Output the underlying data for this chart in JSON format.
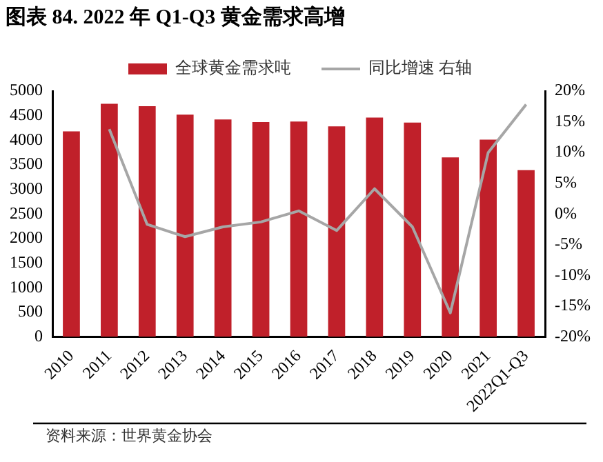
{
  "chart_data": {
    "type": "bar",
    "title": "图表 84. 2022 年 Q1-Q3 黄金需求高增",
    "categories": [
      "2010",
      "2011",
      "2012",
      "2013",
      "2014",
      "2015",
      "2016",
      "2017",
      "2018",
      "2019",
      "2020",
      "2021",
      "2022Q1-Q3"
    ],
    "series": [
      {
        "name": "全球黄金需求吨",
        "color": "#c0202a",
        "values": [
          4180,
          4740,
          4690,
          4520,
          4420,
          4370,
          4380,
          4280,
          4460,
          4360,
          3650,
          4010,
          3390
        ]
      },
      {
        "name": "同比增速 右轴",
        "type": "line",
        "axis": "y2",
        "color": "#a6a6a6",
        "values": [
          null,
          13.8,
          -1.7,
          -3.7,
          -2.1,
          -1.3,
          0.5,
          -2.7,
          4.1,
          -2.1,
          -16.1,
          10.0,
          17.8
        ]
      }
    ],
    "ylim": [
      0,
      5000
    ],
    "yticks": [
      0,
      500,
      1000,
      1500,
      2000,
      2500,
      3000,
      3500,
      4000,
      4500,
      5000
    ],
    "y2lim": [
      -20,
      20
    ],
    "y2ticks": [
      {
        "value": -20,
        "label": "-20%"
      },
      {
        "value": -15,
        "label": "-15%"
      },
      {
        "value": -10,
        "label": "-10%"
      },
      {
        "value": -5,
        "label": "-5%"
      },
      {
        "value": 0,
        "label": "0%"
      },
      {
        "value": 5,
        "label": "5%"
      },
      {
        "value": 10,
        "label": "10%"
      },
      {
        "value": 15,
        "label": "15%"
      },
      {
        "value": 20,
        "label": "20%"
      }
    ],
    "grid": false,
    "legend": "top",
    "marker": "none",
    "line_style": "solid",
    "annotations": [
      "资料来源：世界黄金协会"
    ]
  }
}
